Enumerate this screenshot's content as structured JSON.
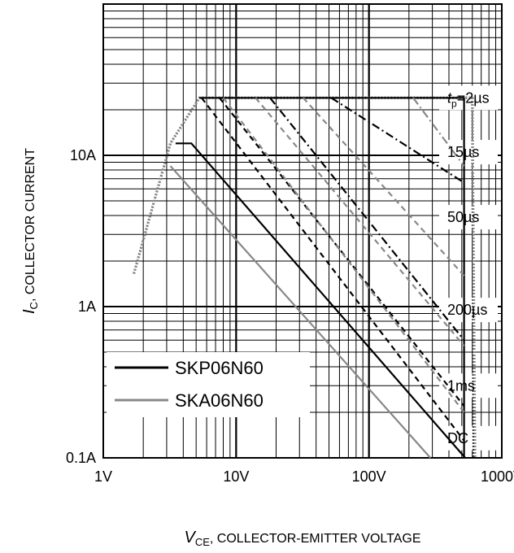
{
  "chart_data": {
    "type": "line",
    "title": "",
    "xscale": "log",
    "yscale": "log",
    "xlim": [
      1,
      1000
    ],
    "ylim": [
      0.1,
      100
    ],
    "xlabel": {
      "main": "V",
      "sub": "CE",
      "rest": ", COLLECTOR-EMITTER VOLTAGE"
    },
    "ylabel": {
      "main": "I",
      "sub": "C",
      "rest": ", COLLECTOR CURRENT"
    },
    "x_ticks": [
      {
        "value": 1,
        "label": "1V"
      },
      {
        "value": 10,
        "label": "10V"
      },
      {
        "value": 100,
        "label": "100V"
      },
      {
        "value": 1000,
        "label": "1000V"
      }
    ],
    "y_ticks": [
      {
        "value": 0.1,
        "label": "0.1A"
      },
      {
        "value": 1,
        "label": "1A"
      },
      {
        "value": 10,
        "label": "10A"
      }
    ],
    "grid": true,
    "legend_position": "bottom-left",
    "legend": [
      {
        "label": "SKP06N60",
        "color": "#000000"
      },
      {
        "label": "SKA06N60",
        "color": "#888888"
      }
    ],
    "pulse_labels": [
      {
        "text_pre": "t",
        "text_sub": "p",
        "text_post": "=2µs",
        "y": 24
      },
      {
        "text": "15µs",
        "y": 10.5
      },
      {
        "text": "50µs",
        "y": 3.9
      },
      {
        "text": "200µs",
        "y": 0.95
      },
      {
        "text": "1ms",
        "y": 0.3
      },
      {
        "text": "DC",
        "y": 0.135
      }
    ],
    "series": [
      {
        "label": "tp=2µs",
        "device": "SKP06N60",
        "style": "dotted",
        "color": "#222222",
        "points": [
          [
            1.7,
            1.65
          ],
          [
            3.2,
            12
          ],
          [
            5.3,
            24
          ],
          [
            600,
            24
          ],
          [
            615,
            0.1
          ]
        ]
      },
      {
        "label": "tp=2µs",
        "device": "SKA06N60",
        "style": "dotted",
        "color": "#888888",
        "points": [
          [
            1.7,
            1.65
          ],
          [
            3.2,
            12
          ],
          [
            5.3,
            24
          ],
          [
            600,
            24
          ],
          [
            630,
            0.1
          ]
        ]
      },
      {
        "label": "15µs",
        "device": "SKP06N60",
        "style": "solid",
        "color": "#000000",
        "points": [
          [
            5.3,
            24
          ],
          [
            520,
            24
          ],
          [
            520,
            0.1
          ]
        ]
      },
      {
        "label": "15µs",
        "device": "SKA06N60",
        "style": "dashdot",
        "color": "#000000",
        "points": [
          [
            52,
            24
          ],
          [
            520,
            6.6
          ]
        ]
      },
      {
        "label": "15µs",
        "device": "SKA06N60",
        "style": "dashdot",
        "color": "#888888",
        "points": [
          [
            215,
            24
          ],
          [
            520,
            8.5
          ]
        ]
      },
      {
        "label": "50µs",
        "device": "SKP06N60",
        "style": "dashdot",
        "color": "#000000",
        "points": [
          [
            18,
            24
          ],
          [
            520,
            0.6
          ]
        ]
      },
      {
        "label": "50µs",
        "device": "SKA06N60",
        "style": "dashed",
        "color": "#888888",
        "points": [
          [
            32,
            24
          ],
          [
            520,
            1.6
          ]
        ]
      },
      {
        "label": "200µs",
        "device": "SKP06N60",
        "style": "dashed",
        "color": "#000000",
        "points": [
          [
            7.5,
            24
          ],
          [
            520,
            0.22
          ]
        ]
      },
      {
        "label": "200µs",
        "device": "SKA06N60",
        "style": "dashed",
        "color": "#888888",
        "points": [
          [
            14,
            24
          ],
          [
            520,
            0.55
          ]
        ]
      },
      {
        "label": "1ms",
        "device": "SKP06N60",
        "style": "dashed",
        "color": "#000000",
        "points": [
          [
            5.5,
            24
          ],
          [
            520,
            0.13
          ]
        ]
      },
      {
        "label": "1ms",
        "device": "SKA06N60",
        "style": "dashed",
        "color": "#888888",
        "points": [
          [
            8,
            24
          ],
          [
            520,
            0.2
          ]
        ]
      },
      {
        "label": "DC",
        "device": "SKP06N60",
        "style": "solid",
        "color": "#000000",
        "points": [
          [
            3.5,
            12
          ],
          [
            4.6,
            12
          ],
          [
            530,
            0.1
          ]
        ]
      },
      {
        "label": "DC",
        "device": "SKA06N60",
        "style": "solid",
        "color": "#888888",
        "points": [
          [
            3.2,
            8.5
          ],
          [
            290,
            0.1
          ]
        ]
      }
    ]
  }
}
